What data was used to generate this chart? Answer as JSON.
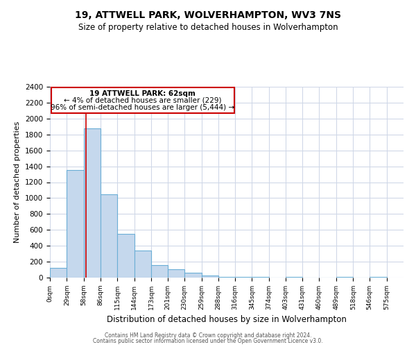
{
  "title": "19, ATTWELL PARK, WOLVERHAMPTON, WV3 7NS",
  "subtitle": "Size of property relative to detached houses in Wolverhampton",
  "xlabel": "Distribution of detached houses by size in Wolverhampton",
  "ylabel": "Number of detached properties",
  "bin_labels": [
    "0sqm",
    "29sqm",
    "58sqm",
    "86sqm",
    "115sqm",
    "144sqm",
    "173sqm",
    "201sqm",
    "230sqm",
    "259sqm",
    "288sqm",
    "316sqm",
    "345sqm",
    "374sqm",
    "403sqm",
    "431sqm",
    "460sqm",
    "489sqm",
    "518sqm",
    "546sqm",
    "575sqm"
  ],
  "bar_heights": [
    125,
    1350,
    1880,
    1050,
    550,
    340,
    160,
    105,
    60,
    30,
    10,
    10,
    5,
    0,
    5,
    0,
    0,
    5,
    0,
    5
  ],
  "bar_color": "#c5d8ed",
  "bar_edge_color": "#6aaed6",
  "ylim": [
    0,
    2400
  ],
  "yticks": [
    0,
    200,
    400,
    600,
    800,
    1000,
    1200,
    1400,
    1600,
    1800,
    2000,
    2200,
    2400
  ],
  "left_edges": [
    0,
    29,
    58,
    86,
    115,
    144,
    173,
    201,
    230,
    259,
    288,
    316,
    345,
    374,
    403,
    431,
    460,
    489,
    518,
    546
  ],
  "xlim_max": 604,
  "property_line_x": 62,
  "property_line_color": "#cc0000",
  "annotation_title": "19 ATTWELL PARK: 62sqm",
  "annotation_line1": "← 4% of detached houses are smaller (229)",
  "annotation_line2": "96% of semi-detached houses are larger (5,444) →",
  "annotation_box_color": "#ffffff",
  "annotation_box_edge": "#cc0000",
  "footer1": "Contains HM Land Registry data © Crown copyright and database right 2024.",
  "footer2": "Contains public sector information licensed under the Open Government Licence v3.0.",
  "background_color": "#ffffff",
  "grid_color": "#d0d8e8"
}
